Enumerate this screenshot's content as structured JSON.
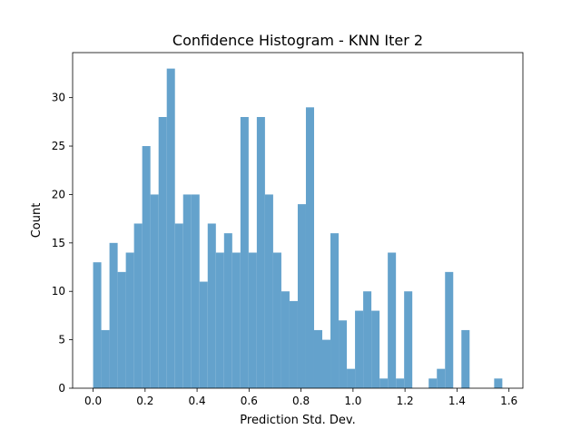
{
  "chart_data": {
    "type": "bar",
    "title": "Confidence Histogram - KNN Iter 2",
    "xlabel": "Prediction Std. Dev.",
    "ylabel": "Count",
    "xlim": [
      -0.0788,
      1.6536
    ],
    "ylim": [
      0,
      34.65
    ],
    "xticks": [
      "0.0",
      "0.2",
      "0.4",
      "0.6",
      "0.8",
      "1.0",
      "1.2",
      "1.4",
      "1.6"
    ],
    "xtick_values": [
      0.0,
      0.2,
      0.4,
      0.6,
      0.8,
      1.0,
      1.2,
      1.4,
      1.6
    ],
    "yticks": [
      "0",
      "5",
      "10",
      "15",
      "20",
      "25",
      "30"
    ],
    "ytick_values": [
      0,
      5,
      10,
      15,
      20,
      25,
      30
    ],
    "grid": false,
    "bar_color": "#64a2cc",
    "bin_start": 0.0,
    "bin_width": 0.03149,
    "values": [
      13,
      6,
      15,
      12,
      14,
      17,
      25,
      20,
      28,
      33,
      17,
      20,
      20,
      11,
      17,
      14,
      16,
      14,
      28,
      14,
      28,
      20,
      14,
      10,
      9,
      19,
      29,
      6,
      5,
      16,
      7,
      2,
      8,
      10,
      8,
      1,
      14,
      1,
      10,
      0,
      0,
      1,
      2,
      12,
      0,
      6,
      0,
      0,
      0,
      1
    ]
  }
}
